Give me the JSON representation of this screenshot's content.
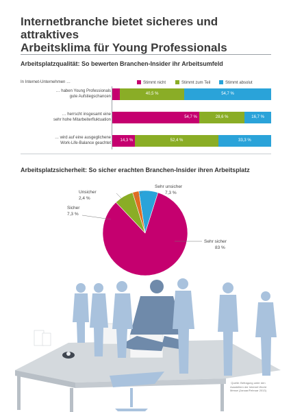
{
  "title_line1": "Internetbranche bietet sicheres und attraktives",
  "title_line2": "Arbeitsklima für Young Professionals",
  "section1": {
    "heading": "Arbeitsplatzqualität: So bewerten Branchen-Insider ihr Arbeitsumfeld",
    "subheading": "In Internet-Unternehmen …"
  },
  "section2": {
    "heading": "Arbeitsplatzsicherheit: So sicher erachten Branchen-Insider ihren Arbeitsplatz"
  },
  "source": {
    "line1": "Quelle: Befragung unter den",
    "line2": "Ausstellern der Internet World",
    "line3": "Messe (Januar/Februar 2013)"
  },
  "colors": {
    "magenta": "#c5006f",
    "green": "#8aad26",
    "blue": "#2aa3d9",
    "orange": "#e06d22",
    "figure_blue": "#a9c2dd",
    "figure_dark": "#6f8aaa"
  },
  "chart_data": [
    {
      "type": "bar",
      "stacked": true,
      "orientation": "horizontal",
      "categories": [
        [
          "… haben Young Professionals",
          "gute Aufstiegschancen"
        ],
        [
          "… herrscht insgesamt eine",
          "sehr hohe Mitarbeiterfluktuation"
        ],
        [
          "… wird auf eine ausgeglichene",
          "Work-Life-Balance geachtet"
        ]
      ],
      "series": [
        {
          "name": "Stimmt nicht",
          "color": "#c5006f",
          "values": [
            4.8,
            54.7,
            14.3
          ],
          "labels": [
            "4,8 %",
            "54,7 %",
            "14,3 %"
          ]
        },
        {
          "name": "Stimmt zum Teil",
          "color": "#8aad26",
          "values": [
            40.5,
            28.6,
            52.4
          ],
          "labels": [
            "40,5 %",
            "28,6 %",
            "52,4 %"
          ]
        },
        {
          "name": "Stimmt absolut",
          "color": "#2aa3d9",
          "values": [
            54.7,
            16.7,
            33.3
          ],
          "labels": [
            "54,7 %",
            "16,7 %",
            "33,3 %"
          ]
        }
      ],
      "legend_position": "top-right"
    },
    {
      "type": "pie",
      "slices": [
        {
          "name": "Sehr unsicher",
          "value": 7.3,
          "label": "7,3 %",
          "color": "#2aa3d9"
        },
        {
          "name": "Sehr sicher",
          "value": 83,
          "label": "83 %",
          "color": "#c5006f"
        },
        {
          "name": "Sicher",
          "value": 7.3,
          "label": "7,3 %",
          "color": "#8aad26"
        },
        {
          "name": "Unsicher",
          "value": 2.4,
          "label": "2,4 %",
          "color": "#e06d22"
        }
      ]
    }
  ]
}
